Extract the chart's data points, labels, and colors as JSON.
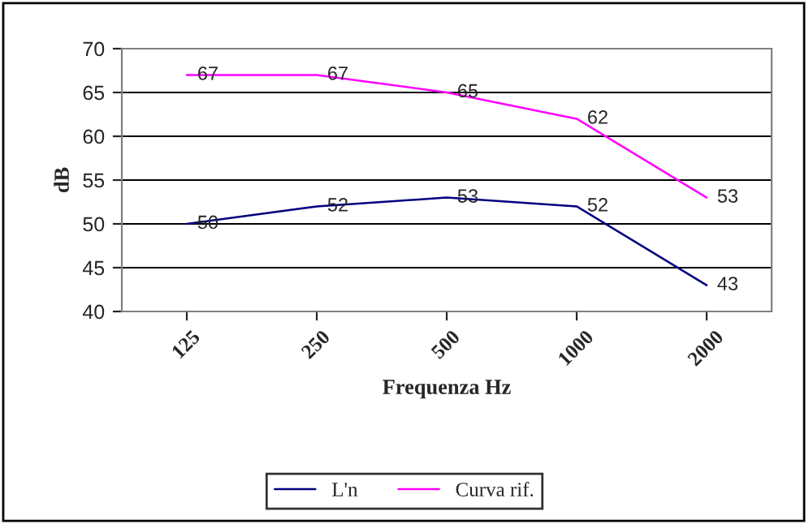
{
  "chart_data": {
    "type": "line",
    "xlabel": "Frequenza Hz",
    "ylabel": "dB",
    "categories": [
      "125",
      "250",
      "500",
      "1000",
      "2000"
    ],
    "series": [
      {
        "name": "L'n",
        "color": "#000080",
        "values": [
          50,
          52,
          53,
          52,
          43
        ]
      },
      {
        "name": "Curva rif.",
        "color": "#ff00ff",
        "values": [
          67,
          67,
          65,
          62,
          53
        ]
      }
    ],
    "ylim": [
      40,
      70
    ],
    "yticks": [
      40,
      45,
      50,
      55,
      60,
      65,
      70
    ],
    "grid": "y",
    "legend": "bottom",
    "data_labels": true,
    "marker": "none",
    "line_style": "solid"
  }
}
